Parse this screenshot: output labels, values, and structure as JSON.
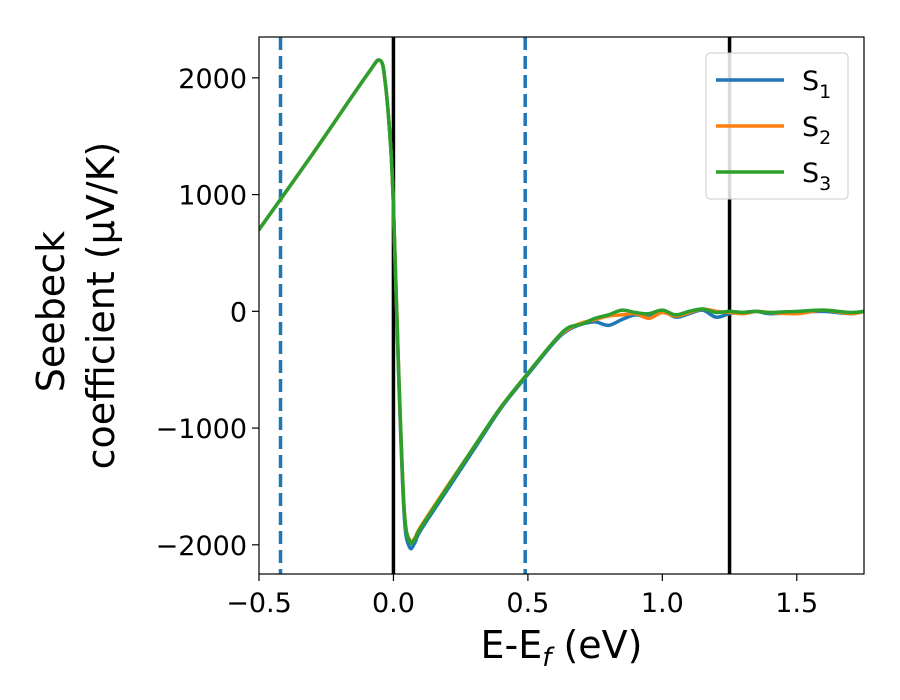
{
  "chart_data": {
    "type": "line",
    "title": "",
    "xlabel": {
      "main": "E-E",
      "sub": "f",
      "tail": " (eV)"
    },
    "ylabel": {
      "line1": "Seebeck",
      "line2": "coefficient  (μV/K)"
    },
    "xlim": [
      -0.5,
      1.75
    ],
    "ylim": [
      -2250,
      2350
    ],
    "xticks": [
      -0.5,
      0.0,
      0.5,
      1.0,
      1.5
    ],
    "xtick_labels": [
      "−0.5",
      "0.0",
      "0.5",
      "1.0",
      "1.5"
    ],
    "yticks": [
      -2000,
      -1000,
      0,
      1000,
      2000
    ],
    "ytick_labels": [
      "−2000",
      "−1000",
      "0",
      "1000",
      "2000"
    ],
    "grid": false,
    "legend_position": "top-right",
    "vlines": [
      {
        "x": -0.42,
        "style": "dashed",
        "color": "#1f77b4"
      },
      {
        "x": 0.0,
        "style": "solid",
        "color": "#000000"
      },
      {
        "x": 0.49,
        "style": "dashed",
        "color": "#1f77b4"
      },
      {
        "x": 1.25,
        "style": "solid",
        "color": "#000000"
      }
    ],
    "series": [
      {
        "name": {
          "main": "S",
          "sub": "1"
        },
        "color": "#1f77b4",
        "x": [
          -0.5,
          -0.3,
          -0.1,
          -0.05,
          -0.03,
          -0.01,
          0.0,
          0.02,
          0.04,
          0.06,
          0.08,
          0.1,
          0.2,
          0.3,
          0.4,
          0.5,
          0.6,
          0.65,
          0.7,
          0.75,
          0.8,
          0.85,
          0.9,
          0.95,
          1.0,
          1.05,
          1.1,
          1.15,
          1.2,
          1.25,
          1.3,
          1.35,
          1.4,
          1.5,
          1.6,
          1.7,
          1.75
        ],
        "y": [
          700,
          1350,
          2020,
          2150,
          1950,
          1400,
          900,
          -600,
          -1750,
          -2020,
          -1980,
          -1880,
          -1530,
          -1180,
          -830,
          -540,
          -260,
          -160,
          -110,
          -90,
          -120,
          -70,
          -30,
          -50,
          0,
          -50,
          -20,
          10,
          -50,
          -20,
          -10,
          0,
          -20,
          -10,
          0,
          -20,
          0
        ]
      },
      {
        "name": {
          "main": "S",
          "sub": "2"
        },
        "color": "#ff7f0e",
        "x": [
          -0.5,
          -0.3,
          -0.1,
          -0.05,
          -0.03,
          -0.01,
          0.0,
          0.02,
          0.04,
          0.06,
          0.08,
          0.1,
          0.2,
          0.3,
          0.4,
          0.5,
          0.6,
          0.65,
          0.7,
          0.75,
          0.8,
          0.85,
          0.9,
          0.95,
          1.0,
          1.05,
          1.1,
          1.15,
          1.2,
          1.25,
          1.3,
          1.35,
          1.4,
          1.5,
          1.6,
          1.7,
          1.75
        ],
        "y": [
          700,
          1350,
          2020,
          2150,
          1950,
          1400,
          900,
          -550,
          -1700,
          -1960,
          -1940,
          -1850,
          -1500,
          -1160,
          -820,
          -530,
          -250,
          -150,
          -100,
          -70,
          -40,
          -30,
          -20,
          -60,
          -10,
          -40,
          -10,
          20,
          0,
          -10,
          -20,
          0,
          -10,
          -20,
          10,
          -20,
          0
        ]
      },
      {
        "name": {
          "main": "S",
          "sub": "3"
        },
        "color": "#2ca02c",
        "x": [
          -0.5,
          -0.3,
          -0.1,
          -0.05,
          -0.03,
          -0.01,
          0.0,
          0.02,
          0.04,
          0.06,
          0.08,
          0.1,
          0.2,
          0.3,
          0.4,
          0.5,
          0.6,
          0.65,
          0.7,
          0.75,
          0.8,
          0.85,
          0.9,
          0.95,
          1.0,
          1.05,
          1.1,
          1.15,
          1.2,
          1.25,
          1.3,
          1.35,
          1.4,
          1.5,
          1.6,
          1.7,
          1.75
        ],
        "y": [
          700,
          1350,
          2020,
          2150,
          1950,
          1400,
          900,
          -550,
          -1700,
          -1970,
          -1950,
          -1860,
          -1510,
          -1160,
          -820,
          -530,
          -250,
          -140,
          -110,
          -60,
          -30,
          10,
          -10,
          -20,
          10,
          -30,
          0,
          20,
          -10,
          0,
          -10,
          0,
          -10,
          0,
          10,
          -10,
          0
        ]
      }
    ]
  }
}
